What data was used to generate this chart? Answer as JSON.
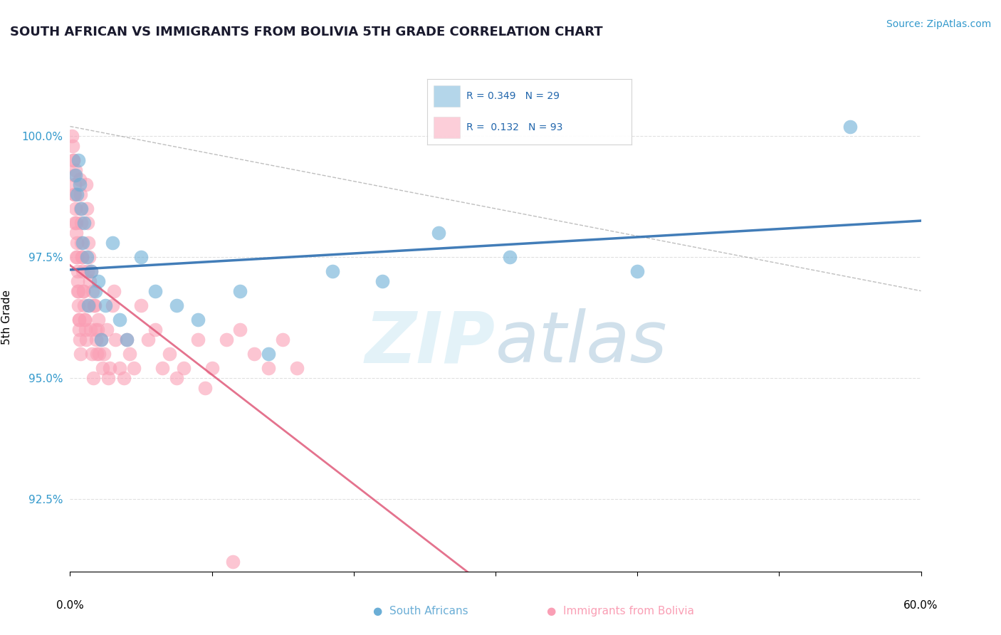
{
  "title": "SOUTH AFRICAN VS IMMIGRANTS FROM BOLIVIA 5TH GRADE CORRELATION CHART",
  "source": "Source: ZipAtlas.com",
  "ylabel": "5th Grade",
  "xlim": [
    0.0,
    60.0
  ],
  "ylim": [
    91.0,
    101.5
  ],
  "yticks": [
    92.5,
    95.0,
    97.5,
    100.0
  ],
  "ytick_labels": [
    "92.5%",
    "95.0%",
    "97.5%",
    "100.0%"
  ],
  "legend_r1": "R = 0.349",
  "legend_n1": "N = 29",
  "legend_r2": "R =  0.132",
  "legend_n2": "N = 93",
  "blue_color": "#6baed6",
  "pink_color": "#fa9fb5",
  "blue_line_color": "#2166ac",
  "pink_line_color": "#e05a7a",
  "sa_x": [
    0.4,
    0.5,
    0.6,
    0.7,
    0.8,
    0.9,
    1.0,
    1.2,
    1.5,
    1.8,
    2.0,
    2.5,
    3.0,
    3.5,
    4.0,
    5.0,
    6.0,
    7.5,
    9.0,
    12.0,
    14.0,
    18.5,
    22.0,
    26.0,
    31.0,
    40.0,
    55.0,
    1.3,
    2.2
  ],
  "sa_y": [
    99.2,
    98.8,
    99.5,
    99.0,
    98.5,
    97.8,
    98.2,
    97.5,
    97.2,
    96.8,
    97.0,
    96.5,
    97.8,
    96.2,
    95.8,
    97.5,
    96.8,
    96.5,
    96.2,
    96.8,
    95.5,
    97.2,
    97.0,
    98.0,
    97.5,
    97.2,
    100.2,
    96.5,
    95.8
  ],
  "bo_x": [
    0.15,
    0.2,
    0.25,
    0.3,
    0.32,
    0.35,
    0.38,
    0.4,
    0.42,
    0.45,
    0.48,
    0.5,
    0.52,
    0.55,
    0.58,
    0.6,
    0.62,
    0.65,
    0.68,
    0.7,
    0.72,
    0.75,
    0.78,
    0.8,
    0.85,
    0.9,
    0.95,
    1.0,
    1.05,
    1.1,
    1.15,
    1.2,
    1.25,
    1.3,
    1.35,
    1.4,
    1.5,
    1.6,
    1.7,
    1.8,
    1.9,
    2.0,
    2.2,
    2.4,
    2.6,
    2.8,
    3.0,
    3.2,
    3.5,
    3.8,
    4.0,
    4.5,
    5.0,
    5.5,
    6.0,
    7.0,
    8.0,
    9.0,
    10.0,
    11.0,
    12.0,
    13.0,
    14.0,
    15.0,
    16.0,
    0.22,
    0.28,
    0.33,
    0.43,
    0.53,
    0.63,
    0.73,
    0.83,
    0.93,
    1.03,
    1.13,
    1.23,
    1.33,
    1.43,
    1.53,
    1.63,
    1.73,
    1.83,
    1.93,
    2.05,
    2.3,
    2.7,
    3.1,
    4.2,
    6.5,
    7.5,
    9.5,
    11.5
  ],
  "bo_y": [
    100.0,
    99.8,
    99.5,
    99.2,
    99.0,
    98.8,
    98.5,
    99.3,
    98.2,
    98.0,
    97.8,
    97.5,
    97.2,
    97.0,
    96.8,
    96.5,
    96.2,
    96.0,
    95.8,
    99.1,
    98.8,
    98.5,
    98.2,
    97.8,
    97.5,
    97.2,
    96.8,
    96.5,
    96.2,
    96.0,
    99.0,
    98.5,
    98.2,
    97.8,
    97.5,
    97.0,
    97.2,
    96.8,
    96.5,
    96.0,
    95.5,
    96.2,
    95.8,
    95.5,
    96.0,
    95.2,
    96.5,
    95.8,
    95.2,
    95.0,
    95.8,
    95.2,
    96.5,
    95.8,
    96.0,
    95.5,
    95.2,
    95.8,
    95.2,
    95.8,
    96.0,
    95.5,
    95.2,
    95.8,
    95.2,
    99.5,
    98.8,
    98.2,
    97.5,
    96.8,
    96.2,
    95.5,
    97.5,
    96.8,
    96.2,
    95.8,
    97.2,
    96.5,
    96.0,
    95.5,
    95.0,
    96.5,
    95.8,
    96.0,
    95.5,
    95.2,
    95.0,
    96.8,
    95.5,
    95.2,
    95.0,
    94.8,
    91.2
  ]
}
